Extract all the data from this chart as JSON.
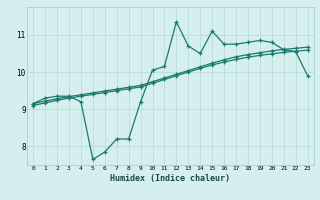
{
  "xlabel": "Humidex (Indice chaleur)",
  "ylabel": "",
  "bg_color": "#d5efee",
  "grid_color": "#c0dedd",
  "line_color": "#1a7a6e",
  "xlim": [
    -0.5,
    23.5
  ],
  "ylim": [
    7.5,
    11.75
  ],
  "yticks": [
    8,
    9,
    10,
    11
  ],
  "xticks": [
    0,
    1,
    2,
    3,
    4,
    5,
    6,
    7,
    8,
    9,
    10,
    11,
    12,
    13,
    14,
    15,
    16,
    17,
    18,
    19,
    20,
    21,
    22,
    23
  ],
  "series1_x": [
    0,
    1,
    2,
    3,
    4,
    5,
    6,
    7,
    8,
    9,
    10,
    11,
    12,
    13,
    14,
    15,
    16,
    17,
    18,
    19,
    20,
    21,
    22,
    23
  ],
  "series1_y": [
    9.15,
    9.3,
    9.35,
    9.35,
    9.2,
    7.65,
    7.85,
    8.2,
    8.2,
    9.2,
    10.05,
    10.15,
    11.35,
    10.7,
    10.5,
    11.1,
    10.75,
    10.75,
    10.8,
    10.85,
    10.8,
    10.6,
    10.55,
    9.9
  ],
  "series2_x": [
    0,
    1,
    2,
    3,
    4,
    5,
    6,
    7,
    8,
    9,
    10,
    11,
    12,
    13,
    14,
    15,
    16,
    17,
    18,
    19,
    20,
    21,
    22,
    23
  ],
  "series2_y": [
    9.15,
    9.22,
    9.28,
    9.34,
    9.39,
    9.44,
    9.49,
    9.54,
    9.59,
    9.64,
    9.74,
    9.84,
    9.94,
    10.04,
    10.14,
    10.24,
    10.33,
    10.41,
    10.47,
    10.52,
    10.57,
    10.61,
    10.64,
    10.67
  ],
  "series3_x": [
    0,
    1,
    2,
    3,
    4,
    5,
    6,
    7,
    8,
    9,
    10,
    11,
    12,
    13,
    14,
    15,
    16,
    17,
    18,
    19,
    20,
    21,
    22,
    23
  ],
  "series3_y": [
    9.1,
    9.17,
    9.24,
    9.3,
    9.35,
    9.4,
    9.45,
    9.5,
    9.55,
    9.6,
    9.7,
    9.8,
    9.9,
    10.0,
    10.1,
    10.19,
    10.27,
    10.34,
    10.4,
    10.45,
    10.49,
    10.53,
    10.56,
    10.59
  ]
}
